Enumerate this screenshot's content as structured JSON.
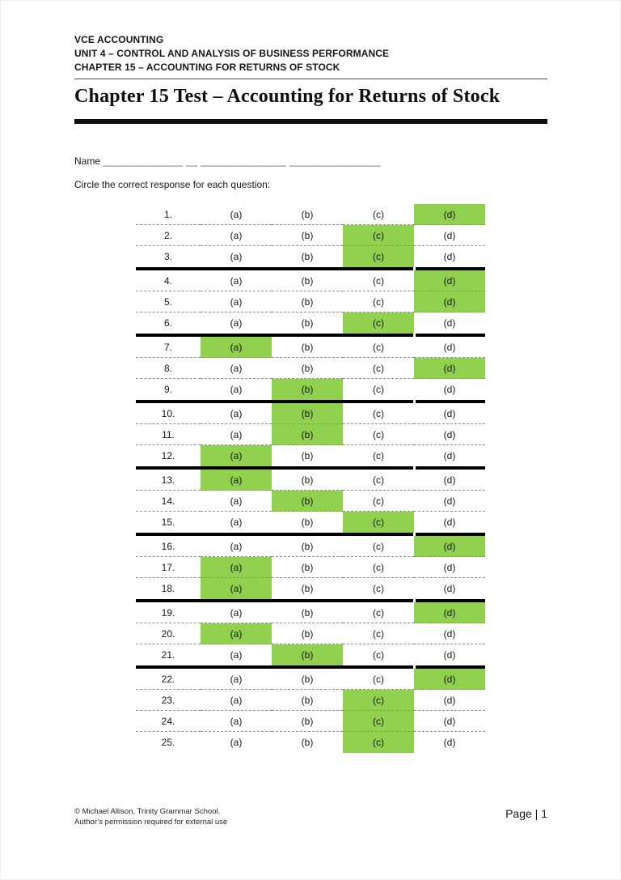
{
  "document": {
    "header": {
      "line1": "VCE ACCOUNTING",
      "line2": "UNIT 4 – CONTROL AND ANALYSIS OF BUSINESS PERFORMANCE",
      "line3": "CHAPTER 15 – ACCOUNTING FOR RETURNS OF STOCK"
    },
    "title": "Chapter 15 Test – Accounting for Returns of Stock",
    "name": {
      "label": "Name",
      "blank": "______________ __ _______________ ________________"
    },
    "instruction": "Circle the correct response for each question:",
    "answer_table": {
      "option_labels": [
        "(a)",
        "(b)",
        "(c)",
        "(d)"
      ],
      "option_keys": [
        "a",
        "b",
        "c",
        "d"
      ],
      "questions": [
        {
          "number": "1.",
          "answer": "d"
        },
        {
          "number": "2.",
          "answer": "c"
        },
        {
          "number": "3.",
          "answer": "c"
        },
        {
          "number": "4.",
          "answer": "d"
        },
        {
          "number": "5.",
          "answer": "d"
        },
        {
          "number": "6.",
          "answer": "c"
        },
        {
          "number": "7.",
          "answer": "a"
        },
        {
          "number": "8.",
          "answer": "d"
        },
        {
          "number": "9.",
          "answer": "b"
        },
        {
          "number": "10.",
          "answer": "b"
        },
        {
          "number": "11.",
          "answer": "b"
        },
        {
          "number": "12.",
          "answer": "a"
        },
        {
          "number": "13.",
          "answer": "a"
        },
        {
          "number": "14.",
          "answer": "b"
        },
        {
          "number": "15.",
          "answer": "c"
        },
        {
          "number": "16.",
          "answer": "d"
        },
        {
          "number": "17.",
          "answer": "a"
        },
        {
          "number": "18.",
          "answer": "a"
        },
        {
          "number": "19.",
          "answer": "d"
        },
        {
          "number": "20.",
          "answer": "a"
        },
        {
          "number": "21.",
          "answer": "b"
        },
        {
          "number": "22.",
          "answer": "d"
        },
        {
          "number": "23.",
          "answer": "c"
        },
        {
          "number": "24.",
          "answer": "c"
        },
        {
          "number": "25.",
          "answer": "c"
        }
      ],
      "thick_divider_after": [
        3,
        6,
        9,
        12,
        15,
        18,
        21
      ]
    },
    "footer": {
      "copyright_line1": "© Michael Allison, Trinity Grammar School.",
      "copyright_line2": "Author’s permission required for external use",
      "page_label": "Page | 1"
    },
    "colors": {
      "highlight": "#92D050"
    }
  }
}
